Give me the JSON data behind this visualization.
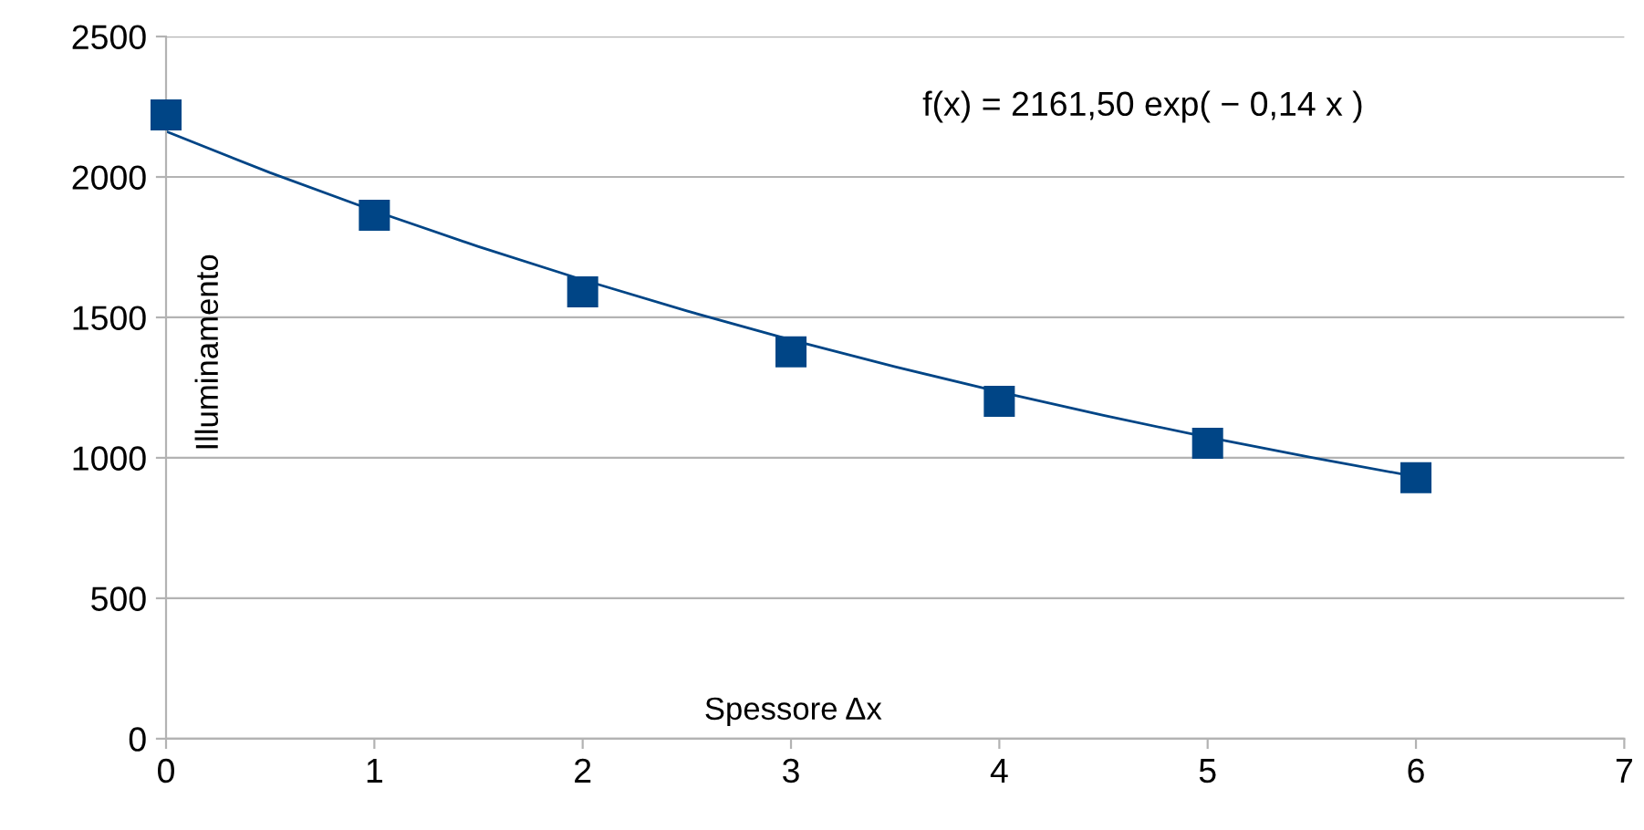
{
  "chart_data": {
    "type": "scatter",
    "xlabel": "Spessore Δx",
    "ylabel": "Illuminamento",
    "annotations": [
      "f(x) = 2161,50 exp( − 0,14 x )"
    ],
    "series": [
      {
        "color": "#004586",
        "marker": "square",
        "x": [
          0,
          1,
          2,
          3,
          4,
          5,
          6
        ],
        "values": [
          2221,
          1864,
          1591,
          1377,
          1201,
          1052,
          929
        ]
      },
      {
        "type": "line",
        "color": "#004586",
        "marker": "none",
        "x": [
          0,
          0.5,
          1,
          1.5,
          2,
          2.5,
          3,
          3.5,
          4,
          4.5,
          5,
          5.5,
          6
        ],
        "values": [
          2162,
          2015,
          1879,
          1752,
          1634,
          1523,
          1420,
          1324,
          1235,
          1151,
          1073,
          1001,
          933
        ]
      }
    ],
    "xlim": [
      0,
      7
    ],
    "xticks": [
      0,
      1,
      2,
      3,
      4,
      5,
      6,
      7
    ],
    "ylim": [
      0,
      2500
    ],
    "yticks": [
      0,
      500,
      1000,
      1500,
      2000,
      2500
    ],
    "grid": "y"
  }
}
